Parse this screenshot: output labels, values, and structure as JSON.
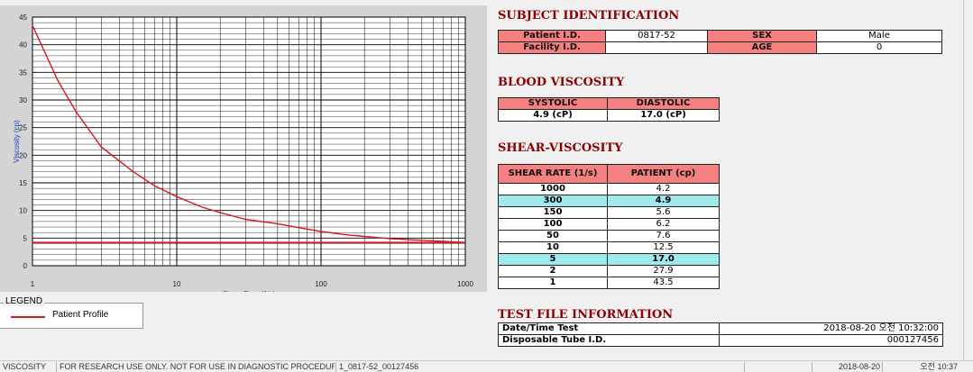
{
  "chart_data": {
    "type": "line",
    "xlabel": "Shear Rate (1/s)",
    "ylabel": "Viscosity (cp)",
    "xscale": "log",
    "xlim": [
      1,
      1000
    ],
    "ylim": [
      0,
      45
    ],
    "x_tick_labels": [
      "1",
      "10",
      "100",
      "1000"
    ],
    "y_ticks": [
      0,
      5,
      10,
      15,
      20,
      25,
      30,
      35,
      40,
      45
    ],
    "grid": true,
    "series": [
      {
        "name": "Patient Profile",
        "color": "#d71920",
        "x": [
          1,
          1.5,
          2,
          3,
          5,
          7,
          10,
          15,
          20,
          30,
          50,
          70,
          100,
          150,
          200,
          300,
          500,
          700,
          1000
        ],
        "y": [
          43.5,
          33.5,
          27.9,
          21.5,
          17.0,
          14.5,
          12.5,
          10.6,
          9.6,
          8.4,
          7.6,
          6.9,
          6.2,
          5.6,
          5.3,
          4.9,
          4.6,
          4.4,
          4.2
        ]
      }
    ],
    "reference_lines": [
      4.2
    ]
  },
  "legend": {
    "title": "LEGEND",
    "label": "Patient Profile"
  },
  "subject": {
    "title": "SUBJECT IDENTIFICATION",
    "patient_id_label": "Patient I.D.",
    "patient_id": "0817-52",
    "facility_id_label": "Facility I.D.",
    "facility_id": "",
    "sex_label": "SEX",
    "sex": "Male",
    "age_label": "AGE",
    "age": "0"
  },
  "blood": {
    "title": "BLOOD VISCOSITY",
    "systolic_label": "SYSTOLIC",
    "diastolic_label": "DIASTOLIC",
    "systolic": "4.9 (cP)",
    "diastolic": "17.0 (cP)"
  },
  "shear": {
    "title": "SHEAR-VISCOSITY",
    "col_rate": "SHEAR RATE (1/s)",
    "col_patient": "PATIENT (cp)",
    "rows": [
      {
        "rate": "1000",
        "val": "4.2",
        "highlight": false
      },
      {
        "rate": "300",
        "val": "4.9",
        "highlight": true
      },
      {
        "rate": "150",
        "val": "5.6",
        "highlight": false
      },
      {
        "rate": "100",
        "val": "6.2",
        "highlight": false
      },
      {
        "rate": "50",
        "val": "7.6",
        "highlight": false
      },
      {
        "rate": "10",
        "val": "12.5",
        "highlight": false
      },
      {
        "rate": "5",
        "val": "17.0",
        "highlight": true
      },
      {
        "rate": "2",
        "val": "27.9",
        "highlight": false
      },
      {
        "rate": "1",
        "val": "43.5",
        "highlight": false
      }
    ]
  },
  "testfile": {
    "title": "TEST FILE INFORMATION",
    "datetime_label": "Date/Time Test",
    "datetime": "2018-08-20  오전 10:32:00",
    "tube_label": "Disposable Tube I.D.",
    "tube": "000127456"
  },
  "statusbar": {
    "left": "VISCOSITY",
    "notice": "FOR RESEARCH USE ONLY. NOT FOR USE IN DIAGNOSTIC PROCEDURES",
    "file": "1_0817-52_00127456",
    "date": "2018-08-20",
    "time": "오전 10:37"
  }
}
